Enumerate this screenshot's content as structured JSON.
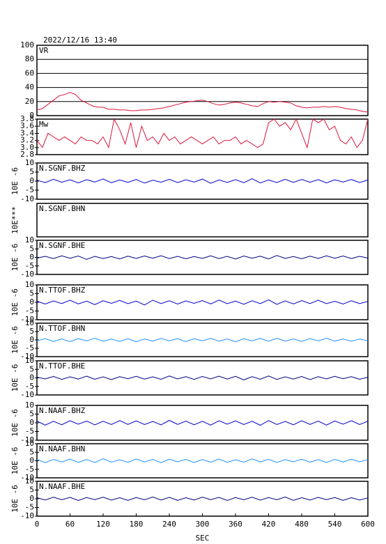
{
  "chart_data": [
    {
      "type": "line",
      "timestamp": "2022/12/16 13:40",
      "title": "VR",
      "color": "#dc143c",
      "grid": true,
      "xlim": [
        0,
        600
      ],
      "ylim": [
        0,
        100
      ],
      "yticks": [
        0,
        20,
        40,
        60,
        80,
        100
      ],
      "x": [
        0,
        10,
        20,
        30,
        40,
        50,
        60,
        70,
        80,
        90,
        100,
        110,
        120,
        130,
        140,
        150,
        160,
        170,
        180,
        190,
        200,
        210,
        220,
        230,
        240,
        250,
        260,
        270,
        280,
        290,
        300,
        310,
        320,
        330,
        340,
        350,
        360,
        370,
        380,
        390,
        400,
        410,
        420,
        430,
        440,
        450,
        460,
        470,
        480,
        490,
        500,
        510,
        520,
        530,
        540,
        550,
        560,
        570,
        580,
        590,
        600
      ],
      "values": [
        8,
        10,
        16,
        22,
        28,
        30,
        33,
        30,
        22,
        18,
        14,
        12,
        12,
        9,
        9,
        8,
        8,
        7,
        7,
        8,
        8,
        9,
        10,
        11,
        13,
        15,
        17,
        19,
        20,
        21,
        22,
        20,
        17,
        15,
        16,
        18,
        19,
        18,
        16,
        14,
        13,
        17,
        20,
        19,
        20,
        19,
        18,
        14,
        12,
        11,
        12,
        12,
        13,
        12,
        13,
        12,
        10,
        9,
        8,
        6,
        5
      ]
    },
    {
      "type": "line",
      "title": "Mw",
      "color": "#dc143c",
      "xlim": [
        0,
        600
      ],
      "ylim": [
        2.8,
        3.8
      ],
      "yticks": [
        2.8,
        {
          "value": 3,
          "label": "3.0"
        },
        3.2,
        3.4,
        3.6,
        3.8
      ],
      "x": [
        0,
        10,
        20,
        30,
        40,
        50,
        60,
        70,
        80,
        90,
        100,
        110,
        120,
        130,
        140,
        150,
        160,
        170,
        180,
        190,
        200,
        210,
        220,
        230,
        240,
        250,
        260,
        270,
        280,
        290,
        300,
        310,
        320,
        330,
        340,
        350,
        360,
        370,
        380,
        390,
        400,
        410,
        420,
        430,
        440,
        450,
        460,
        470,
        480,
        490,
        500,
        510,
        520,
        530,
        540,
        550,
        560,
        570,
        580,
        590,
        600
      ],
      "values": [
        3.2,
        3.0,
        3.4,
        3.3,
        3.2,
        3.3,
        3.2,
        3.1,
        3.3,
        3.2,
        3.2,
        3.1,
        3.3,
        3.0,
        3.8,
        3.5,
        3.1,
        3.7,
        3.0,
        3.6,
        3.2,
        3.3,
        3.1,
        3.4,
        3.2,
        3.3,
        3.1,
        3.2,
        3.3,
        3.2,
        3.1,
        3.2,
        3.3,
        3.1,
        3.2,
        3.2,
        3.3,
        3.1,
        3.2,
        3.1,
        3.0,
        3.1,
        3.7,
        3.8,
        3.6,
        3.7,
        3.5,
        3.8,
        3.4,
        3.0,
        3.8,
        3.7,
        3.8,
        3.5,
        3.6,
        3.2,
        3.1,
        3.3,
        3.0,
        3.2,
        3.8
      ]
    },
    {
      "type": "line",
      "title": "N.SGNF.BHZ",
      "ylabel": "10E -6",
      "color": "#0000cd",
      "xlim": [
        0,
        600
      ],
      "ylim": [
        -10,
        10
      ],
      "yticks": [
        -10,
        -5,
        0,
        5,
        10
      ],
      "x": [
        0,
        15,
        30,
        45,
        60,
        75,
        90,
        105,
        120,
        135,
        150,
        165,
        180,
        195,
        210,
        225,
        240,
        255,
        270,
        285,
        300,
        315,
        330,
        345,
        360,
        375,
        390,
        405,
        420,
        435,
        450,
        465,
        480,
        495,
        510,
        525,
        540,
        555,
        570,
        585,
        600
      ],
      "values": [
        0.5,
        -0.8,
        1,
        -0.6,
        0.7,
        -1,
        0.8,
        -0.5,
        1.2,
        -0.9,
        0.6,
        -0.7,
        0.9,
        -1.1,
        0.5,
        -0.6,
        1,
        -0.8,
        0.7,
        -0.5,
        1.1,
        -1.2,
        0.6,
        -0.7,
        0.8,
        -0.9,
        1.3,
        -1,
        0.6,
        -0.8,
        1,
        -0.7,
        0.9,
        -0.6,
        0.8,
        -1,
        0.7,
        -0.5,
        0.9,
        -0.8,
        0.6
      ]
    },
    {
      "type": "line",
      "title": "N.SGNF.BHN",
      "ylabel": "10E***",
      "xlim": [
        0,
        600
      ]
    },
    {
      "type": "line",
      "title": "N.SGNF.BHE",
      "ylabel": "10E -6",
      "color": "#000080",
      "xlim": [
        0,
        600
      ],
      "ylim": [
        -10,
        10
      ],
      "yticks": [
        -10,
        -5,
        0,
        5,
        10
      ],
      "x": [
        0,
        15,
        30,
        45,
        60,
        75,
        90,
        105,
        120,
        135,
        150,
        165,
        180,
        195,
        210,
        225,
        240,
        255,
        270,
        285,
        300,
        315,
        330,
        345,
        360,
        375,
        390,
        405,
        420,
        435,
        450,
        465,
        480,
        495,
        510,
        525,
        540,
        555,
        570,
        585,
        600
      ],
      "values": [
        -0.4,
        0.6,
        -0.7,
        0.9,
        -0.5,
        0.8,
        -1.2,
        0.6,
        -0.7,
        0.5,
        -0.9,
        0.7,
        -0.6,
        0.8,
        -0.5,
        1,
        -0.7,
        0.6,
        -0.8,
        0.5,
        -0.6,
        0.9,
        -0.7,
        0.6,
        -1,
        0.8,
        -0.5,
        0.7,
        -0.9,
        1.1,
        -0.6,
        0.5,
        -0.8,
        0.7,
        -0.6,
        0.9,
        -0.5,
        0.8,
        -0.7,
        0.6,
        -0.4
      ]
    },
    {
      "type": "line",
      "title": "N.TTOF.BHZ",
      "ylabel": "10E -6",
      "color": "#0000cd",
      "xlim": [
        0,
        600
      ],
      "ylim": [
        -10,
        10
      ],
      "yticks": [
        -10,
        -5,
        0,
        5,
        10
      ],
      "x": [
        0,
        15,
        30,
        45,
        60,
        75,
        90,
        105,
        120,
        135,
        150,
        165,
        180,
        195,
        210,
        225,
        240,
        255,
        270,
        285,
        300,
        315,
        330,
        345,
        360,
        375,
        390,
        405,
        420,
        435,
        450,
        465,
        480,
        495,
        510,
        525,
        540,
        555,
        570,
        585,
        600
      ],
      "values": [
        0.6,
        -1,
        0.8,
        -0.7,
        1.2,
        -0.9,
        0.7,
        -1.3,
        0.9,
        -0.6,
        1.1,
        -0.8,
        0.7,
        -1.5,
        1.2,
        -0.7,
        0.9,
        -1,
        0.8,
        -0.6,
        1,
        -0.9,
        1.3,
        -0.8,
        0.7,
        -1.1,
        0.9,
        -0.7,
        1.4,
        -1.2,
        0.8,
        -0.9,
        1,
        -0.7,
        1.2,
        -0.8,
        0.6,
        -1,
        0.9,
        -0.7,
        0.5
      ]
    },
    {
      "type": "line",
      "title": "N.TTOF.BHN",
      "ylabel": "10E -6",
      "color": "#1e90ff",
      "xlim": [
        0,
        600
      ],
      "ylim": [
        -10,
        10
      ],
      "yticks": [
        -10,
        -5,
        0,
        5,
        10
      ],
      "x": [
        0,
        15,
        30,
        45,
        60,
        75,
        90,
        105,
        120,
        135,
        150,
        165,
        180,
        195,
        210,
        225,
        240,
        255,
        270,
        285,
        300,
        315,
        330,
        345,
        360,
        375,
        390,
        405,
        420,
        435,
        450,
        465,
        480,
        495,
        510,
        525,
        540,
        555,
        570,
        585,
        600
      ],
      "values": [
        -0.5,
        0.7,
        -0.9,
        0.6,
        -1,
        0.8,
        -0.6,
        1,
        -0.8,
        0.5,
        -0.9,
        0.7,
        -1.1,
        0.6,
        -0.7,
        0.9,
        -0.6,
        0.8,
        -1,
        0.7,
        -0.5,
        0.9,
        -0.8,
        0.6,
        -1.1,
        0.7,
        -0.6,
        0.9,
        -0.8,
        1,
        -0.7,
        0.6,
        -0.9,
        0.8,
        -0.6,
        1,
        -0.7,
        0.5,
        -0.8,
        0.6,
        -0.5
      ]
    },
    {
      "type": "line",
      "title": "N.TTOF.BHE",
      "ylabel": "10E -6",
      "color": "#000080",
      "xlim": [
        0,
        600
      ],
      "ylim": [
        -10,
        10
      ],
      "yticks": [
        -10,
        -5,
        0,
        5,
        10
      ],
      "x": [
        0,
        15,
        30,
        45,
        60,
        75,
        90,
        105,
        120,
        135,
        150,
        165,
        180,
        195,
        210,
        225,
        240,
        255,
        270,
        285,
        300,
        315,
        330,
        345,
        360,
        375,
        390,
        405,
        420,
        435,
        450,
        465,
        480,
        495,
        510,
        525,
        540,
        555,
        570,
        585,
        600
      ],
      "values": [
        0.4,
        -0.6,
        0.8,
        -0.9,
        0.6,
        -0.7,
        1,
        -0.8,
        0.6,
        -1,
        0.7,
        -0.5,
        0.9,
        -0.7,
        0.6,
        -0.8,
        1.1,
        -0.6,
        0.7,
        -0.9,
        0.8,
        -0.6,
        1,
        -0.7,
        0.9,
        -1.2,
        0.7,
        -0.8,
        1.1,
        -0.9,
        0.6,
        -0.7,
        0.8,
        -1,
        0.7,
        -0.6,
        0.9,
        -0.5,
        0.7,
        -0.8,
        0.4
      ]
    },
    {
      "type": "line",
      "title": "N.NAAF.BHZ",
      "ylabel": "10E -6",
      "color": "#0000cd",
      "xlim": [
        0,
        600
      ],
      "ylim": [
        -10,
        10
      ],
      "yticks": [
        -10,
        -5,
        0,
        5,
        10
      ],
      "x": [
        0,
        15,
        30,
        45,
        60,
        75,
        90,
        105,
        120,
        135,
        150,
        165,
        180,
        195,
        210,
        225,
        240,
        255,
        270,
        285,
        300,
        315,
        330,
        345,
        360,
        375,
        390,
        405,
        420,
        435,
        450,
        465,
        480,
        495,
        510,
        525,
        540,
        555,
        570,
        585,
        600
      ],
      "values": [
        1,
        -1.3,
        0.9,
        -1.1,
        1.2,
        -0.8,
        1,
        -1.2,
        0.9,
        -1,
        1.3,
        -0.9,
        1.1,
        -1,
        0.8,
        -1.2,
        1.4,
        -0.9,
        1,
        -1.1,
        0.9,
        -1.3,
        1.2,
        -0.8,
        1.1,
        -1,
        0.9,
        -1.4,
        1.3,
        -1,
        0.8,
        -1.1,
        1.2,
        -0.9,
        1,
        -1.3,
        1.1,
        -0.8,
        1.2,
        -1,
        0.9
      ]
    },
    {
      "type": "line",
      "title": "N.NAAF.BHN",
      "ylabel": "10E -6",
      "color": "#1e90ff",
      "xlim": [
        0,
        600
      ],
      "ylim": [
        -10,
        10
      ],
      "yticks": [
        -10,
        -5,
        0,
        5,
        10
      ],
      "x": [
        0,
        15,
        30,
        45,
        60,
        75,
        90,
        105,
        120,
        135,
        150,
        165,
        180,
        195,
        210,
        225,
        240,
        255,
        270,
        285,
        300,
        315,
        330,
        345,
        360,
        375,
        390,
        405,
        420,
        435,
        450,
        465,
        480,
        495,
        510,
        525,
        540,
        555,
        570,
        585,
        600
      ],
      "values": [
        0.9,
        -1.1,
        0.8,
        -0.7,
        1,
        -0.9,
        0.7,
        -1,
        1.2,
        -0.8,
        0.6,
        -0.9,
        1,
        -0.7,
        0.8,
        -1.1,
        0.9,
        -0.6,
        0.8,
        -1,
        0.7,
        -0.8,
        1,
        -0.9,
        0.6,
        -0.8,
        1.1,
        -0.7,
        0.9,
        -1,
        0.7,
        -0.6,
        0.9,
        -0.8,
        0.7,
        -1,
        0.8,
        -0.7,
        0.9,
        -0.6,
        0.7
      ]
    },
    {
      "type": "line",
      "title": "N.NAAF.BHE",
      "ylabel": "10E -6",
      "color": "#000080",
      "xlim": [
        0,
        600
      ],
      "ylim": [
        -10,
        10
      ],
      "yticks": [
        -10,
        -5,
        0,
        5,
        10
      ],
      "xticks": [
        0,
        60,
        120,
        180,
        240,
        300,
        360,
        420,
        480,
        540,
        600
      ],
      "xlabel": "SEC",
      "x": [
        0,
        15,
        30,
        45,
        60,
        75,
        90,
        105,
        120,
        135,
        150,
        165,
        180,
        195,
        210,
        225,
        240,
        255,
        270,
        285,
        300,
        315,
        330,
        345,
        360,
        375,
        390,
        405,
        420,
        435,
        450,
        465,
        480,
        495,
        510,
        525,
        540,
        555,
        570,
        585,
        600
      ],
      "values": [
        0.6,
        -0.7,
        0.9,
        -0.6,
        0.8,
        -1,
        0.7,
        -0.5,
        0.9,
        -0.8,
        0.6,
        -0.9,
        0.7,
        -0.6,
        1,
        -0.7,
        0.8,
        -0.9,
        0.6,
        -0.7,
        0.9,
        -0.5,
        0.8,
        -1,
        0.7,
        -0.6,
        0.9,
        -0.8,
        0.7,
        -0.6,
        1,
        -0.9,
        0.6,
        -0.7,
        0.8,
        -0.5,
        0.7,
        -0.9,
        0.6,
        -0.7,
        0.5
      ]
    }
  ]
}
